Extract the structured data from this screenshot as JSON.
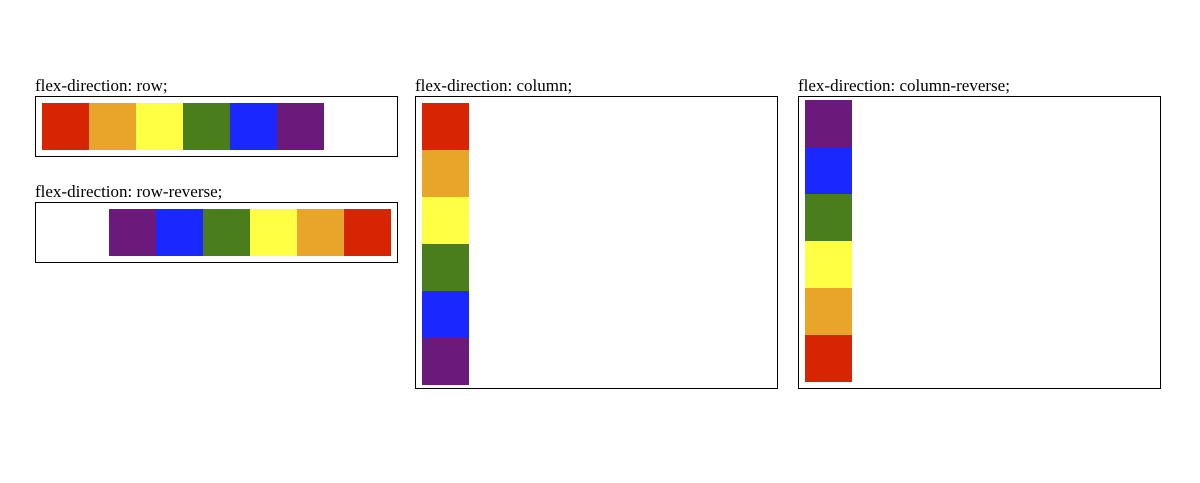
{
  "demos": [
    {
      "id": "row",
      "title": "flex-direction: row;"
    },
    {
      "id": "row-reverse",
      "title": "flex-direction: row-reverse;"
    },
    {
      "id": "column",
      "title": "flex-direction: column;"
    },
    {
      "id": "column-reverse",
      "title": "flex-direction: column-reverse;"
    }
  ],
  "swatches": [
    {
      "name": "red",
      "color": "#d72504"
    },
    {
      "name": "orange",
      "color": "#e8a52a"
    },
    {
      "name": "yellow",
      "color": "#ffff44"
    },
    {
      "name": "green",
      "color": "#4a7e1d"
    },
    {
      "name": "blue",
      "color": "#1a27ff"
    },
    {
      "name": "purple",
      "color": "#6b1a7c"
    }
  ]
}
